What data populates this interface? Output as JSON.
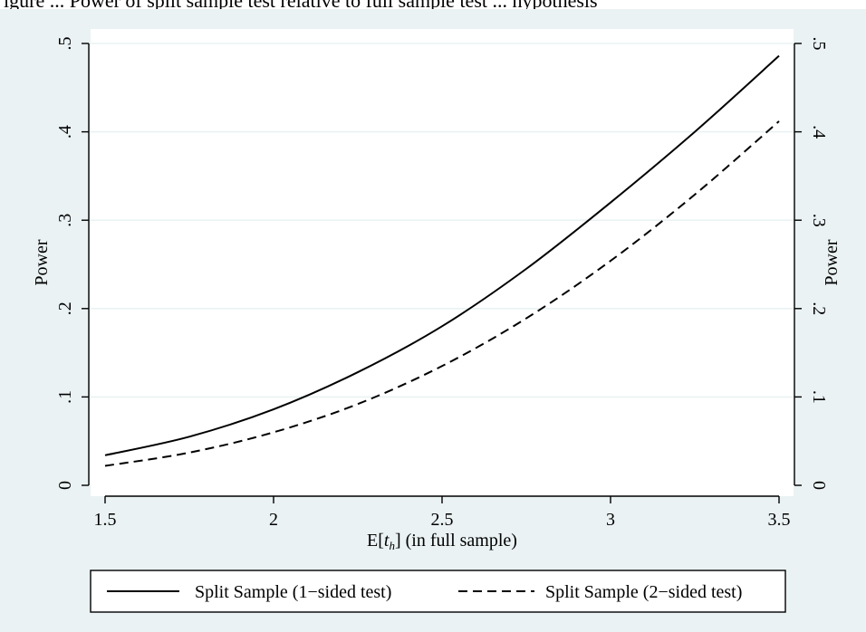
{
  "header_fragment": "igure ... Power of split sample test relative to full sample test ... hypothesis",
  "chart_data": {
    "type": "line",
    "xlabel": "E[t",
    "xlabel_sub": "h",
    "xlabel_suffix": "] (in full sample)",
    "ylabel": "Power",
    "ylabel_right": "Power",
    "xlim": [
      1.5,
      3.5
    ],
    "ylim": [
      0,
      0.5
    ],
    "x_ticks": [
      1.5,
      2,
      2.5,
      3,
      3.5
    ],
    "x_tick_labels": [
      "1.5",
      "2",
      "2.5",
      "3",
      "3.5"
    ],
    "y_ticks": [
      0,
      0.1,
      0.2,
      0.3,
      0.4,
      0.5
    ],
    "y_tick_labels": [
      "0",
      ".1",
      ".2",
      ".3",
      ".4",
      ".5"
    ],
    "grid": true,
    "legend_position": "bottom",
    "series": [
      {
        "name": "Split Sample (1−sided test)",
        "style": "solid",
        "x": [
          1.5,
          1.75,
          2.0,
          2.25,
          2.5,
          2.75,
          3.0,
          3.25,
          3.5
        ],
        "y": [
          0.034,
          0.055,
          0.086,
          0.128,
          0.18,
          0.245,
          0.32,
          0.4,
          0.486
        ]
      },
      {
        "name": "Split Sample (2−sided test)",
        "style": "dashed",
        "x": [
          1.5,
          1.75,
          2.0,
          2.25,
          2.5,
          2.75,
          3.0,
          3.25,
          3.5
        ],
        "y": [
          0.022,
          0.037,
          0.06,
          0.092,
          0.135,
          0.189,
          0.254,
          0.329,
          0.412
        ]
      }
    ],
    "colors": {
      "outer_background": "#eaf2f3",
      "plot_background": "#ffffff",
      "gridline": "#eaf2f3",
      "line": "#000000"
    }
  }
}
